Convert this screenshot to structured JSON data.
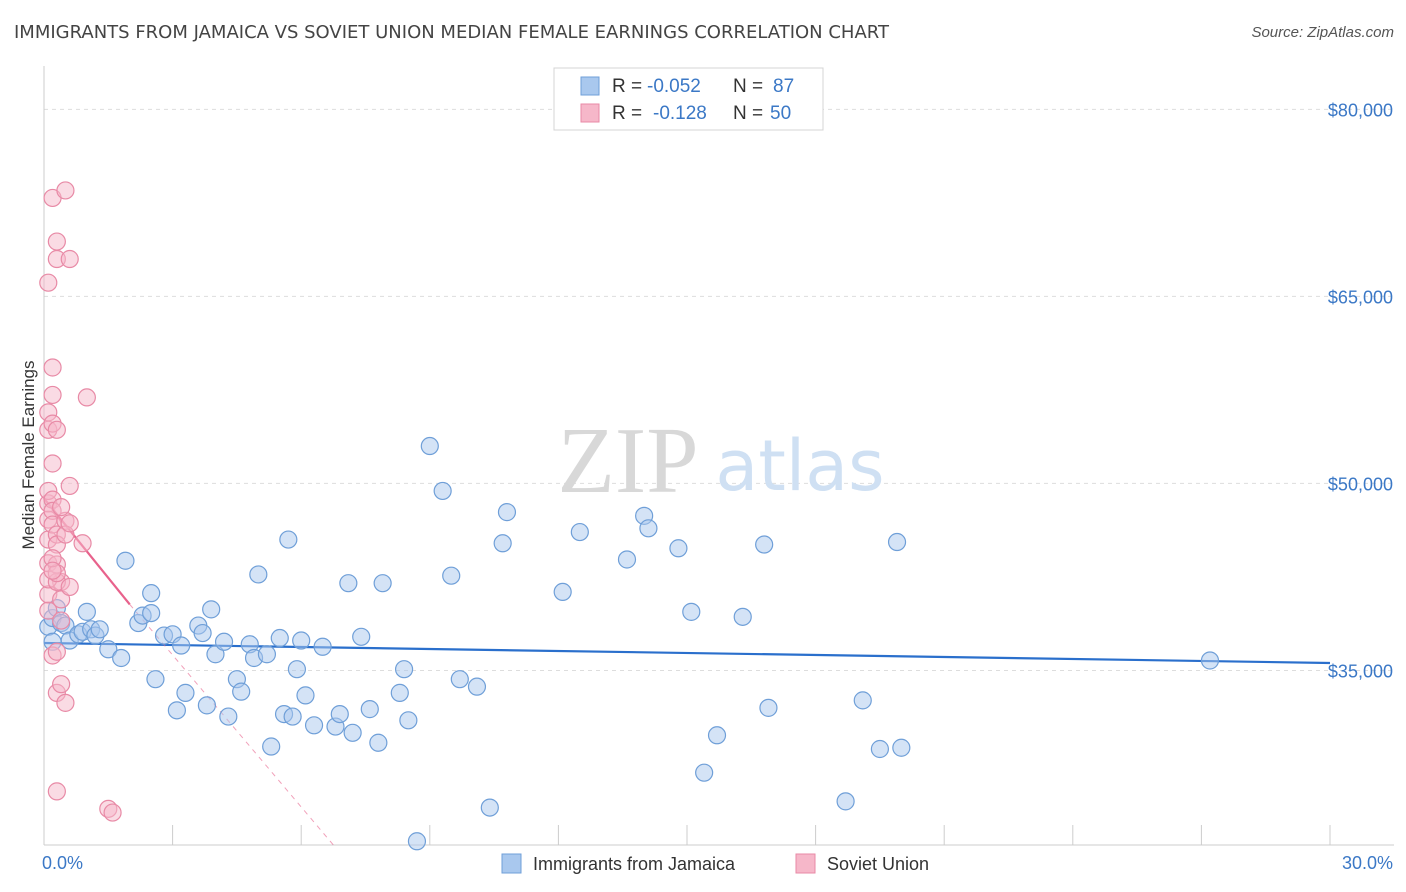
{
  "header": {
    "title": "IMMIGRANTS FROM JAMAICA VS SOVIET UNION MEDIAN FEMALE EARNINGS CORRELATION CHART",
    "source": "Source: ZipAtlas.com"
  },
  "watermark": {
    "zip": "ZIP",
    "atlas": "atlas"
  },
  "colors": {
    "blue_fill": "#a9c8ee",
    "blue_stroke": "#6f9fd8",
    "blue_line": "#2a6fcc",
    "pink_fill": "#f6b7c9",
    "pink_stroke": "#e88aa6",
    "pink_line": "#e8628c",
    "axis_value": "#3b78c6",
    "grid": "#dddddd"
  },
  "legend_top": {
    "rows": [
      {
        "r_label": "R =",
        "r_value": "-0.052",
        "n_label": "N =",
        "n_value": "87"
      },
      {
        "r_label": "R =",
        "r_value": "-0.128",
        "n_label": "N =",
        "n_value": "50"
      }
    ]
  },
  "chart_data": {
    "type": "scatter",
    "title": "IMMIGRANTS FROM JAMAICA VS SOVIET UNION MEDIAN FEMALE EARNINGS CORRELATION CHART",
    "xlabel": "",
    "ylabel": "Median Female Earnings",
    "xlim": [
      0,
      30
    ],
    "ylim": [
      21000,
      83000
    ],
    "x_tick_labels": [
      {
        "value": 0,
        "label": "0.0%"
      },
      {
        "value": 30,
        "label": "30.0%"
      }
    ],
    "y_tick_labels": [
      {
        "value": 80000,
        "label": "$80,000"
      },
      {
        "value": 65000,
        "label": "$65,000"
      },
      {
        "value": 50000,
        "label": "$50,000"
      },
      {
        "value": 35000,
        "label": "$35,000"
      }
    ],
    "series": [
      {
        "name": "Immigrants from Jamaica",
        "color": "blue",
        "trend": {
          "x": [
            0,
            30
          ],
          "y": [
            37200,
            35600
          ]
        },
        "points": [
          [
            0.1,
            38500
          ],
          [
            0.2,
            39200
          ],
          [
            0.3,
            40000
          ],
          [
            0.4,
            38800
          ],
          [
            0.5,
            38600
          ],
          [
            0.6,
            37400
          ],
          [
            0.8,
            37900
          ],
          [
            0.9,
            38100
          ],
          [
            1.0,
            39700
          ],
          [
            1.1,
            38300
          ],
          [
            1.2,
            37800
          ],
          [
            1.3,
            38300
          ],
          [
            1.5,
            36700
          ],
          [
            1.8,
            36000
          ],
          [
            1.9,
            43800
          ],
          [
            2.2,
            38800
          ],
          [
            2.3,
            39400
          ],
          [
            2.5,
            39600
          ],
          [
            2.5,
            41200
          ],
          [
            2.6,
            34300
          ],
          [
            2.8,
            37800
          ],
          [
            3.0,
            37900
          ],
          [
            3.1,
            31800
          ],
          [
            3.2,
            37000
          ],
          [
            3.3,
            33200
          ],
          [
            3.6,
            38600
          ],
          [
            3.7,
            38000
          ],
          [
            3.8,
            32200
          ],
          [
            3.9,
            39900
          ],
          [
            4.0,
            36300
          ],
          [
            4.2,
            37300
          ],
          [
            4.3,
            31300
          ],
          [
            4.5,
            34300
          ],
          [
            4.6,
            33300
          ],
          [
            4.8,
            37100
          ],
          [
            4.9,
            36000
          ],
          [
            5.0,
            42700
          ],
          [
            5.2,
            36300
          ],
          [
            5.3,
            28900
          ],
          [
            5.5,
            37600
          ],
          [
            5.6,
            31500
          ],
          [
            5.7,
            45500
          ],
          [
            5.8,
            31300
          ],
          [
            5.9,
            35100
          ],
          [
            6.0,
            37400
          ],
          [
            6.1,
            33000
          ],
          [
            6.3,
            30600
          ],
          [
            6.5,
            36900
          ],
          [
            6.8,
            30500
          ],
          [
            6.9,
            31500
          ],
          [
            7.1,
            42000
          ],
          [
            7.2,
            30000
          ],
          [
            7.4,
            37700
          ],
          [
            7.6,
            31900
          ],
          [
            7.8,
            29200
          ],
          [
            7.9,
            42000
          ],
          [
            8.3,
            33200
          ],
          [
            8.4,
            35100
          ],
          [
            8.5,
            31000
          ],
          [
            8.7,
            21300
          ],
          [
            9.0,
            53000
          ],
          [
            9.3,
            49400
          ],
          [
            9.5,
            42600
          ],
          [
            9.7,
            34300
          ],
          [
            10.1,
            33700
          ],
          [
            10.4,
            24000
          ],
          [
            10.7,
            45200
          ],
          [
            10.8,
            47700
          ],
          [
            12.1,
            41300
          ],
          [
            12.5,
            46100
          ],
          [
            13.6,
            43900
          ],
          [
            14.0,
            47400
          ],
          [
            14.1,
            46400
          ],
          [
            14.8,
            44800
          ],
          [
            15.1,
            39700
          ],
          [
            15.4,
            26800
          ],
          [
            15.7,
            29800
          ],
          [
            16.3,
            39300
          ],
          [
            16.8,
            45100
          ],
          [
            16.9,
            32000
          ],
          [
            18.7,
            24500
          ],
          [
            19.1,
            32600
          ],
          [
            19.5,
            28700
          ],
          [
            19.9,
            45300
          ],
          [
            20.0,
            28800
          ],
          [
            27.2,
            35800
          ],
          [
            0.2,
            37300
          ]
        ]
      },
      {
        "name": "Soviet Union",
        "color": "pink",
        "trend": {
          "x": [
            0,
            2.0
          ],
          "y": [
            48800,
            40300
          ]
        },
        "trend_ext": {
          "x": [
            2.0,
            6.8
          ],
          "y": [
            40300,
            20800
          ]
        },
        "points": [
          [
            0.1,
            66100
          ],
          [
            0.2,
            72900
          ],
          [
            0.3,
            69400
          ],
          [
            0.3,
            68000
          ],
          [
            0.4,
            42100
          ],
          [
            0.5,
            73500
          ],
          [
            0.6,
            68000
          ],
          [
            1.0,
            56900
          ],
          [
            0.1,
            39800
          ],
          [
            0.1,
            41100
          ],
          [
            0.1,
            42300
          ],
          [
            0.1,
            43600
          ],
          [
            0.1,
            45500
          ],
          [
            0.1,
            47100
          ],
          [
            0.1,
            48400
          ],
          [
            0.1,
            49400
          ],
          [
            0.1,
            54300
          ],
          [
            0.1,
            55700
          ],
          [
            0.2,
            57100
          ],
          [
            0.2,
            59300
          ],
          [
            0.2,
            51600
          ],
          [
            0.2,
            48700
          ],
          [
            0.2,
            47800
          ],
          [
            0.2,
            46700
          ],
          [
            0.3,
            45900
          ],
          [
            0.3,
            45100
          ],
          [
            0.3,
            43500
          ],
          [
            0.3,
            42100
          ],
          [
            0.4,
            40700
          ],
          [
            0.4,
            39000
          ],
          [
            0.2,
            36200
          ],
          [
            0.3,
            36500
          ],
          [
            0.3,
            33200
          ],
          [
            0.4,
            33900
          ],
          [
            0.5,
            32400
          ],
          [
            0.5,
            47000
          ],
          [
            0.5,
            45900
          ],
          [
            0.6,
            49800
          ],
          [
            0.6,
            41700
          ],
          [
            0.6,
            46800
          ],
          [
            0.9,
            45200
          ],
          [
            0.2,
            54800
          ],
          [
            0.3,
            54300
          ],
          [
            0.3,
            42800
          ],
          [
            0.2,
            44000
          ],
          [
            0.4,
            48100
          ],
          [
            0.3,
            25300
          ],
          [
            1.5,
            23900
          ],
          [
            1.6,
            23600
          ],
          [
            0.2,
            43000
          ]
        ]
      }
    ],
    "legend_bottom": [
      "Immigrants from Jamaica",
      "Soviet Union"
    ]
  }
}
